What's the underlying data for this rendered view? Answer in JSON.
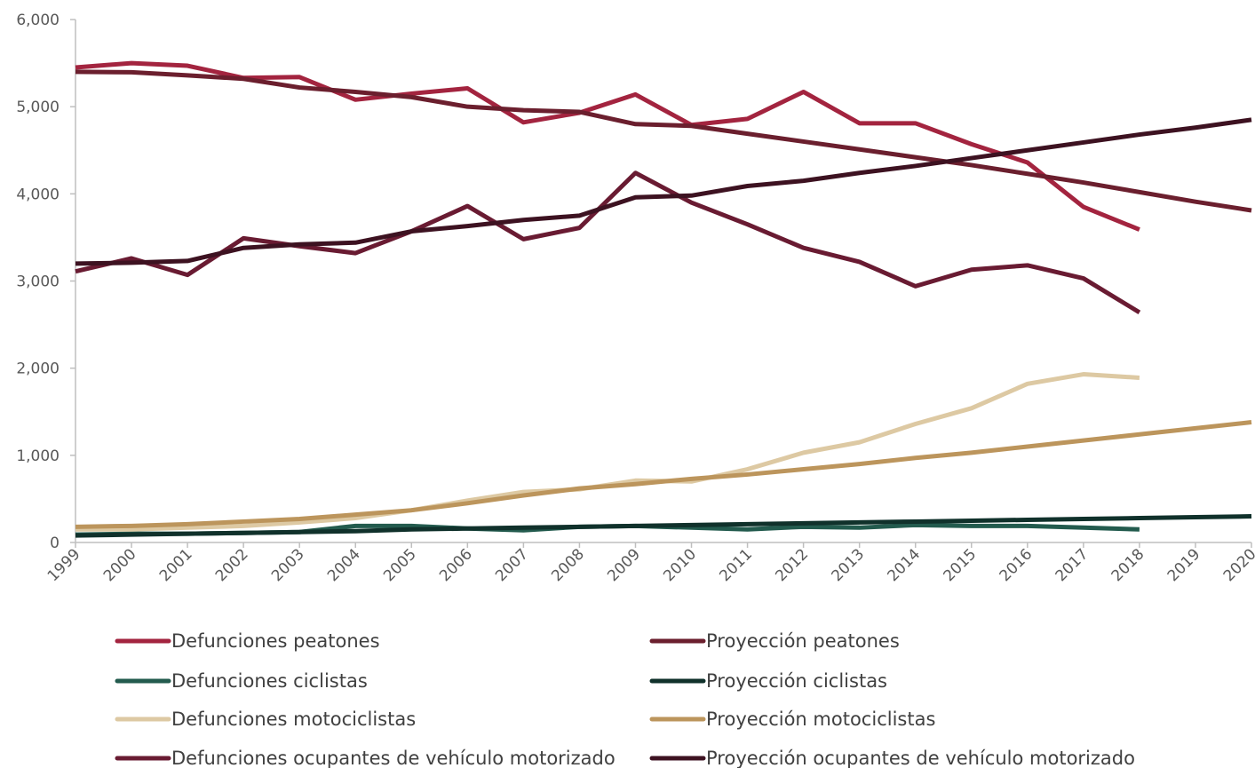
{
  "chart_data": {
    "type": "line",
    "title": "",
    "xlabel": "",
    "ylabel": "",
    "x": [
      "1999",
      "2000",
      "2001",
      "2002",
      "2003",
      "2004",
      "2005",
      "2006",
      "2007",
      "2008",
      "2009",
      "2010",
      "2011",
      "2012",
      "2013",
      "2014",
      "2015",
      "2016",
      "2017",
      "2018",
      "2019",
      "2020"
    ],
    "ylim": [
      0,
      6000
    ],
    "yticks": [
      "0",
      "1,000",
      "2,000",
      "3,000",
      "4,000",
      "5,000",
      "6,000"
    ],
    "grid": false,
    "legend_position": "bottom",
    "series": [
      {
        "name": "Defunciones peatones",
        "color": "#a3243f",
        "values": [
          5450,
          5500,
          5470,
          5330,
          5340,
          5080,
          5150,
          5210,
          4820,
          4930,
          5140,
          4790,
          4860,
          5170,
          4810,
          4810,
          4570,
          4360,
          3850,
          3590,
          null,
          null
        ]
      },
      {
        "name": "Proyección peatones",
        "color": "#6b1f2e",
        "values": [
          5400,
          5395,
          5360,
          5320,
          5220,
          5170,
          5110,
          5000,
          4960,
          4940,
          4800,
          4780,
          4690,
          4600,
          4510,
          4420,
          4330,
          4230,
          4130,
          4020,
          3910,
          3810
        ]
      },
      {
        "name": "Defunciones ciclistas",
        "color": "#235b4e",
        "values": [
          90,
          100,
          100,
          110,
          120,
          190,
          190,
          160,
          140,
          180,
          190,
          170,
          150,
          180,
          170,
          200,
          190,
          190,
          170,
          150,
          null,
          null
        ]
      },
      {
        "name": "Proyección ciclistas",
        "color": "#10312b",
        "values": [
          80,
          90,
          100,
          110,
          120,
          130,
          150,
          160,
          170,
          180,
          190,
          200,
          210,
          220,
          230,
          240,
          250,
          260,
          270,
          280,
          290,
          300
        ]
      },
      {
        "name": "Defunciones motociclistas",
        "color": "#ddc9a3",
        "values": [
          150,
          150,
          170,
          190,
          230,
          280,
          370,
          480,
          580,
          610,
          710,
          700,
          840,
          1030,
          1150,
          1360,
          1540,
          1820,
          1930,
          1890,
          null,
          null
        ]
      },
      {
        "name": "Proyección motociclistas",
        "color": "#bc955c",
        "values": [
          180,
          190,
          210,
          240,
          270,
          320,
          370,
          450,
          540,
          620,
          670,
          730,
          780,
          840,
          900,
          970,
          1030,
          1100,
          1170,
          1240,
          1310,
          1380
        ]
      },
      {
        "name": "Defunciones ocupantes de vehículo motorizado",
        "color": "#691b32",
        "values": [
          3110,
          3260,
          3070,
          3490,
          3400,
          3320,
          3570,
          3860,
          3480,
          3610,
          4240,
          3900,
          3650,
          3380,
          3220,
          2940,
          3130,
          3180,
          3030,
          2640,
          null,
          null
        ]
      },
      {
        "name": "Proyección  ocupantes de vehículo motorizado",
        "color": "#3d1221",
        "values": [
          3200,
          3210,
          3230,
          3380,
          3420,
          3440,
          3570,
          3630,
          3700,
          3750,
          3960,
          3980,
          4090,
          4150,
          4240,
          4320,
          4410,
          4500,
          4590,
          4680,
          4760,
          4850
        ]
      }
    ]
  }
}
